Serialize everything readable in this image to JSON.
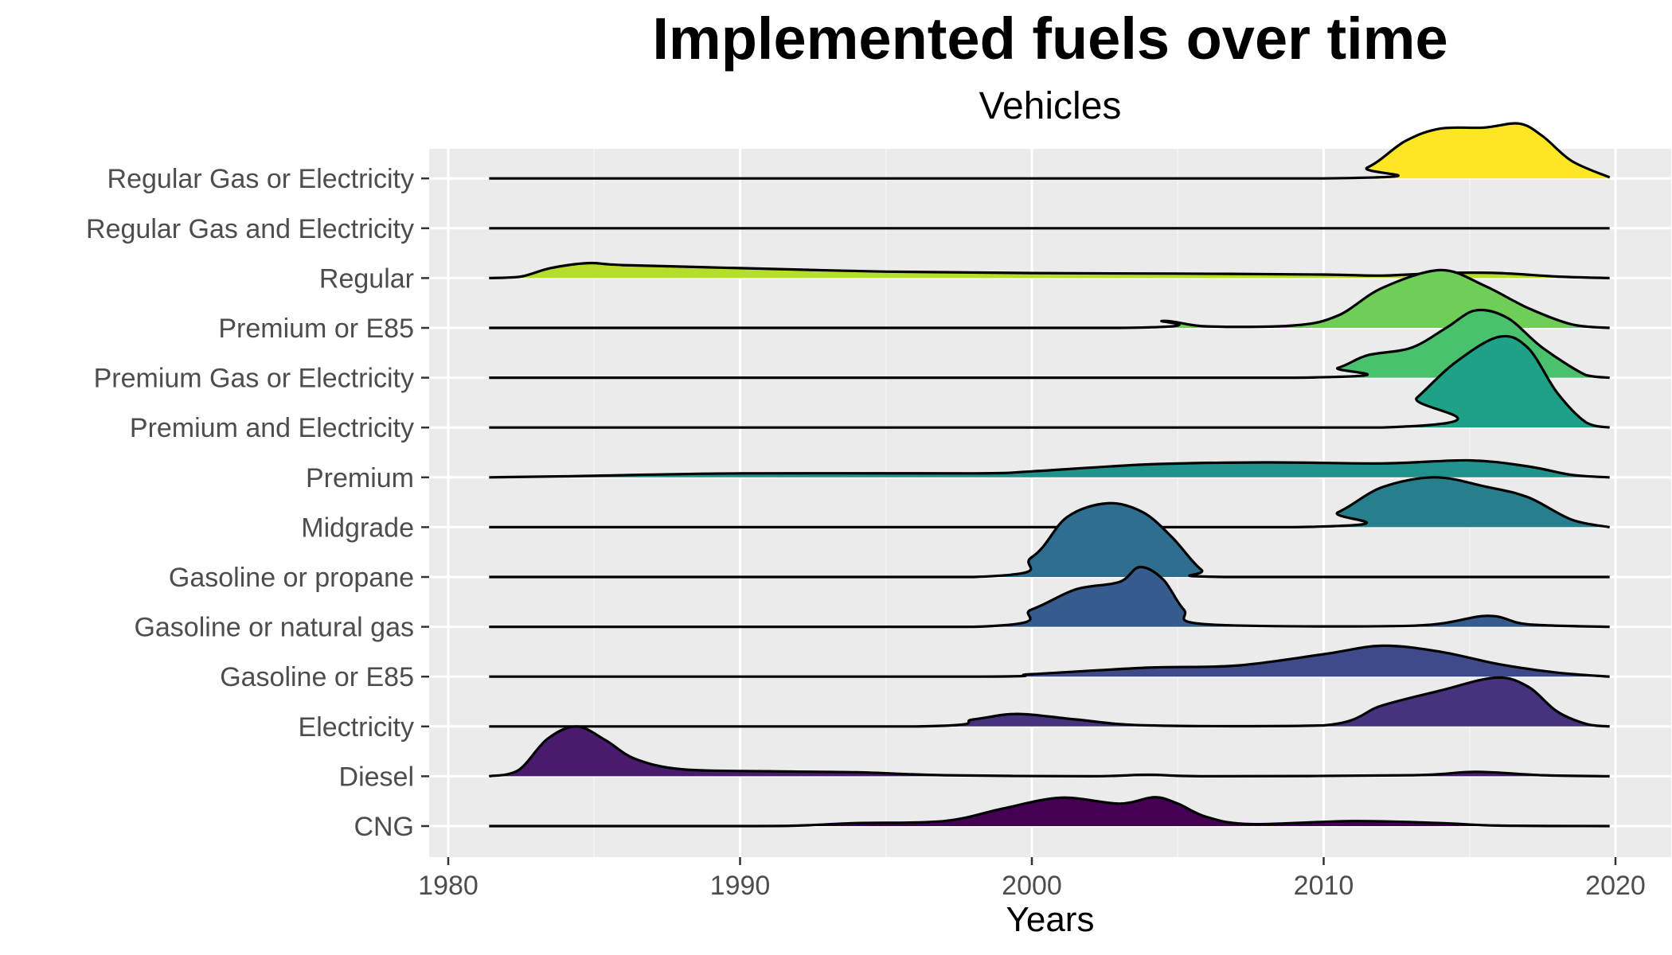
{
  "chart_data": {
    "type": "ridgeline",
    "title": "Implemented fuels over time",
    "subtitle": "Vehicles",
    "xlabel": "Years",
    "ylabel": "",
    "xlim": [
      1981.5,
      2021.2
    ],
    "xticks": [
      1980,
      1990,
      2000,
      2010,
      2020
    ],
    "grid": true,
    "background": "#EBEBEB",
    "series": [
      {
        "name": "CNG",
        "color": "#440154",
        "points": [
          [
            1981.4,
            0
          ],
          [
            1990,
            0
          ],
          [
            1992,
            0.01
          ],
          [
            1994,
            0.06
          ],
          [
            1997,
            0.1
          ],
          [
            1999,
            0.35
          ],
          [
            2001,
            0.57
          ],
          [
            2003,
            0.45
          ],
          [
            2004.2,
            0.58
          ],
          [
            2005,
            0.45
          ],
          [
            2006,
            0.18
          ],
          [
            2007.5,
            0.04
          ],
          [
            2011,
            0.1
          ],
          [
            2014,
            0.06
          ],
          [
            2016,
            0.01
          ],
          [
            2019.8,
            0
          ]
        ]
      },
      {
        "name": "Diesel",
        "color": "#481B6D",
        "points": [
          [
            1981.4,
            0
          ],
          [
            1982.4,
            0.12
          ],
          [
            1983.4,
            0.75
          ],
          [
            1984.4,
            1.0
          ],
          [
            1985.4,
            0.72
          ],
          [
            1986.4,
            0.35
          ],
          [
            1988,
            0.14
          ],
          [
            1991,
            0.1
          ],
          [
            1994,
            0.08
          ],
          [
            1997,
            0.02
          ],
          [
            2002,
            0
          ],
          [
            2004,
            0.03
          ],
          [
            2006,
            0
          ],
          [
            2013,
            0.02
          ],
          [
            2015.2,
            0.09
          ],
          [
            2017.5,
            0.02
          ],
          [
            2019.8,
            0
          ]
        ]
      },
      {
        "name": "Electricity",
        "color": "#46327E",
        "points": [
          [
            1981.4,
            0
          ],
          [
            1996,
            0
          ],
          [
            1998,
            0.14
          ],
          [
            1999.5,
            0.25
          ],
          [
            2001.5,
            0.14
          ],
          [
            2004,
            0.02
          ],
          [
            2010,
            0.02
          ],
          [
            2012,
            0.42
          ],
          [
            2014,
            0.72
          ],
          [
            2015.9,
            0.98
          ],
          [
            2017,
            0.8
          ],
          [
            2018,
            0.3
          ],
          [
            2019,
            0.05
          ],
          [
            2019.8,
            0
          ]
        ]
      },
      {
        "name": "Gasoline or E85",
        "color": "#3E4A89",
        "points": [
          [
            1981.4,
            0
          ],
          [
            1998,
            0
          ],
          [
            2000,
            0.05
          ],
          [
            2004,
            0.18
          ],
          [
            2007,
            0.22
          ],
          [
            2010,
            0.45
          ],
          [
            2012,
            0.62
          ],
          [
            2014,
            0.5
          ],
          [
            2016,
            0.25
          ],
          [
            2018,
            0.08
          ],
          [
            2019.8,
            0
          ]
        ]
      },
      {
        "name": "Gasoline or natural gas",
        "color": "#365C8D",
        "points": [
          [
            1981.4,
            0
          ],
          [
            1998,
            0
          ],
          [
            2000,
            0.35
          ],
          [
            2001.5,
            0.75
          ],
          [
            2003,
            0.9
          ],
          [
            2003.7,
            1.2
          ],
          [
            2004.5,
            0.95
          ],
          [
            2005.2,
            0.35
          ],
          [
            2006,
            0.05
          ],
          [
            2013,
            0.02
          ],
          [
            2015.6,
            0.22
          ],
          [
            2017,
            0.05
          ],
          [
            2019.8,
            0
          ]
        ]
      },
      {
        "name": "Gasoline or propane",
        "color": "#2E6E8E",
        "points": [
          [
            1981.4,
            0
          ],
          [
            1998,
            0
          ],
          [
            2000,
            0.4
          ],
          [
            2001.2,
            1.2
          ],
          [
            2002.6,
            1.48
          ],
          [
            2003.8,
            1.3
          ],
          [
            2004.8,
            0.8
          ],
          [
            2005.8,
            0.15
          ],
          [
            2006.6,
            0
          ],
          [
            2019.8,
            0
          ]
        ]
      },
      {
        "name": "Midgrade",
        "color": "#277F8E",
        "points": [
          [
            1981.4,
            0
          ],
          [
            2009,
            0
          ],
          [
            2010.5,
            0.3
          ],
          [
            2012,
            0.8
          ],
          [
            2013.8,
            1.0
          ],
          [
            2015.5,
            0.82
          ],
          [
            2017,
            0.6
          ],
          [
            2018.5,
            0.15
          ],
          [
            2019.8,
            0
          ]
        ]
      },
      {
        "name": "Premium",
        "color": "#21918C",
        "points": [
          [
            1981.4,
            0
          ],
          [
            1984,
            0.02
          ],
          [
            1990,
            0.08
          ],
          [
            1998,
            0.08
          ],
          [
            2000,
            0.12
          ],
          [
            2004,
            0.26
          ],
          [
            2008,
            0.3
          ],
          [
            2012,
            0.28
          ],
          [
            2015,
            0.34
          ],
          [
            2017,
            0.22
          ],
          [
            2018.5,
            0.05
          ],
          [
            2019.8,
            0
          ]
        ]
      },
      {
        "name": "Premium and Electricity",
        "color": "#1FA187",
        "points": [
          [
            1981.4,
            0
          ],
          [
            2012,
            0
          ],
          [
            2013.2,
            0.6
          ],
          [
            2014.5,
            1.3
          ],
          [
            2016,
            1.82
          ],
          [
            2017,
            1.6
          ],
          [
            2018,
            0.7
          ],
          [
            2019,
            0.1
          ],
          [
            2019.8,
            0
          ]
        ]
      },
      {
        "name": "Premium Gas or Electricity",
        "color": "#4AC16D",
        "points": [
          [
            1981.4,
            0
          ],
          [
            2009,
            0
          ],
          [
            2010.5,
            0.2
          ],
          [
            2011.5,
            0.45
          ],
          [
            2013,
            0.6
          ],
          [
            2014.2,
            1.0
          ],
          [
            2015.2,
            1.35
          ],
          [
            2016.3,
            1.2
          ],
          [
            2017.5,
            0.6
          ],
          [
            2019,
            0.05
          ],
          [
            2019.8,
            0
          ]
        ]
      },
      {
        "name": "Premium or E85",
        "color": "#6ECE58",
        "points": [
          [
            1981.4,
            0
          ],
          [
            2003,
            0
          ],
          [
            2004.5,
            0.14
          ],
          [
            2006,
            0.03
          ],
          [
            2009,
            0.05
          ],
          [
            2010.5,
            0.25
          ],
          [
            2012,
            0.8
          ],
          [
            2014,
            1.16
          ],
          [
            2015.5,
            0.85
          ],
          [
            2017,
            0.4
          ],
          [
            2018.5,
            0.07
          ],
          [
            2019.8,
            0
          ]
        ]
      },
      {
        "name": "Regular",
        "color": "#B5DE2B",
        "points": [
          [
            1981.4,
            0
          ],
          [
            1982.5,
            0.03
          ],
          [
            1983.5,
            0.2
          ],
          [
            1984.8,
            0.3
          ],
          [
            1986,
            0.26
          ],
          [
            1990,
            0.2
          ],
          [
            1995,
            0.13
          ],
          [
            2000,
            0.1
          ],
          [
            2005,
            0.09
          ],
          [
            2010,
            0.07
          ],
          [
            2012,
            0.05
          ],
          [
            2014,
            0.1
          ],
          [
            2016,
            0.1
          ],
          [
            2018,
            0.03
          ],
          [
            2019.8,
            0
          ]
        ]
      },
      {
        "name": "Regular Gas and Electricity",
        "color": "#D8E219",
        "points": [
          [
            1981.4,
            0
          ],
          [
            2019.8,
            0
          ]
        ]
      },
      {
        "name": "Regular Gas or Electricity",
        "color": "#FDE725",
        "points": [
          [
            1981.4,
            0
          ],
          [
            2010,
            0
          ],
          [
            2011.5,
            0.22
          ],
          [
            2012.8,
            0.75
          ],
          [
            2014,
            1.0
          ],
          [
            2015.5,
            1.02
          ],
          [
            2016.7,
            1.1
          ],
          [
            2017.5,
            0.85
          ],
          [
            2018.5,
            0.35
          ],
          [
            2019.8,
            0.02
          ]
        ]
      }
    ]
  }
}
